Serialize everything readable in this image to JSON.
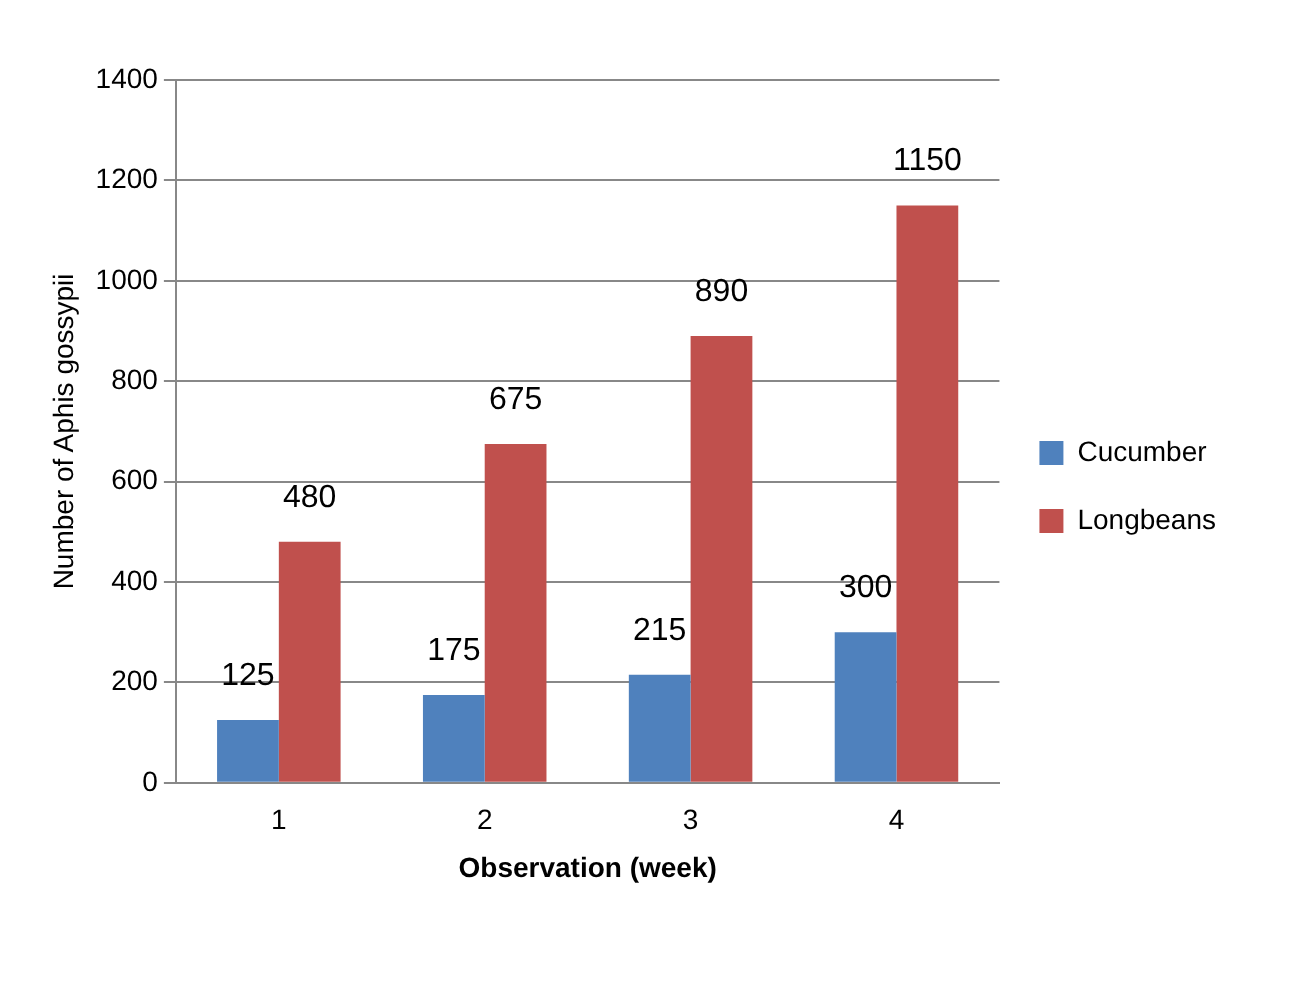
{
  "chart_data": {
    "type": "bar",
    "xlabel": "Observation (week)",
    "ylabel": "Number of Aphis gossypii",
    "categories": [
      "1",
      "2",
      "3",
      "4"
    ],
    "series": [
      {
        "name": "Cucumber",
        "color": "#4f81bd",
        "values": [
          125,
          175,
          215,
          300
        ]
      },
      {
        "name": "Longbeans",
        "color": "#c0504d",
        "values": [
          480,
          675,
          890,
          1150
        ]
      }
    ],
    "ylim": [
      0,
      1400
    ],
    "yticks": [
      0,
      200,
      400,
      600,
      800,
      1000,
      1200,
      1400
    ],
    "grid": "y",
    "legend": "right",
    "data_labels": true
  }
}
